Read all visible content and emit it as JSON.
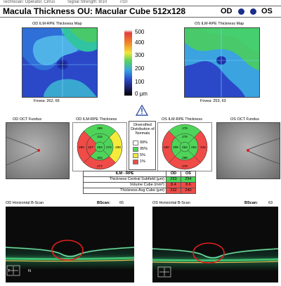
{
  "top_strip": {
    "left_text": "Technician: Operator, Cirrus",
    "middle_text": "Signal Strength: 8/10",
    "right_text": "7/10"
  },
  "header": {
    "title": "Macula Thickness OU: Macular Cube 512x128",
    "od": "OD",
    "os": "OS"
  },
  "od_map": {
    "title": "OD ILM-RPE Thickness Map",
    "fovea": "Fovea: 262, 65"
  },
  "os_map": {
    "title": "OS ILM-RPE Thickness Map",
    "fovea": "Fovea: 253, 63"
  },
  "scale": {
    "ticks": [
      "500",
      "400",
      "300",
      "200",
      "100",
      "0 µm"
    ]
  },
  "od_fundus": {
    "title": "OD OCT Fundus"
  },
  "os_fundus": {
    "title": "OS OCT Fundus"
  },
  "od_etdrs": {
    "title": "OD ILM-RPE Thickness",
    "values": [
      "289",
      "315",
      "253",
      "272",
      "298",
      "277",
      "303",
      "327",
      "260"
    ]
  },
  "os_etdrs": {
    "title": "OS ILM-RPE Thickness",
    "values": [
      "278",
      "276",
      "254",
      "292",
      "315",
      "279",
      "298",
      "306",
      "260"
    ]
  },
  "distribution": {
    "title": "Diversified Distribution of Normals",
    "items": [
      "99%",
      "95%",
      "5%",
      "1%"
    ],
    "colors": [
      "#ffffff",
      "#4fd45a",
      "#f4ea3b",
      "#ef4b47"
    ]
  },
  "table": {
    "header": [
      "ILM - RPE",
      "OD",
      "OS"
    ],
    "rows": [
      {
        "label": "Thickness Central Subfield (µm)",
        "od": "253",
        "os": "254"
      },
      {
        "label": "Volume Cube (mm³)",
        "od": "8.4",
        "os": "8.6"
      },
      {
        "label": "Thickness Avg Cube (µm)",
        "od": "232",
        "os": "240"
      }
    ]
  },
  "od_bscan": {
    "title": "OD Horizontal B-Scan",
    "bscan_label": "BScan:",
    "bscan_value": "65",
    "t_label": "T",
    "n_label": "N"
  },
  "os_bscan": {
    "title": "OS Horizontal B-Scan",
    "bscan_label": "BScan:",
    "bscan_value": "63"
  },
  "colors": {
    "eye_dot": "#1a2f8a",
    "normal_green": "#4fd45a",
    "abnormal_red": "#ef4b47",
    "borderline_yellow": "#f4ea3b",
    "annotation_circle": "#e0201c"
  }
}
